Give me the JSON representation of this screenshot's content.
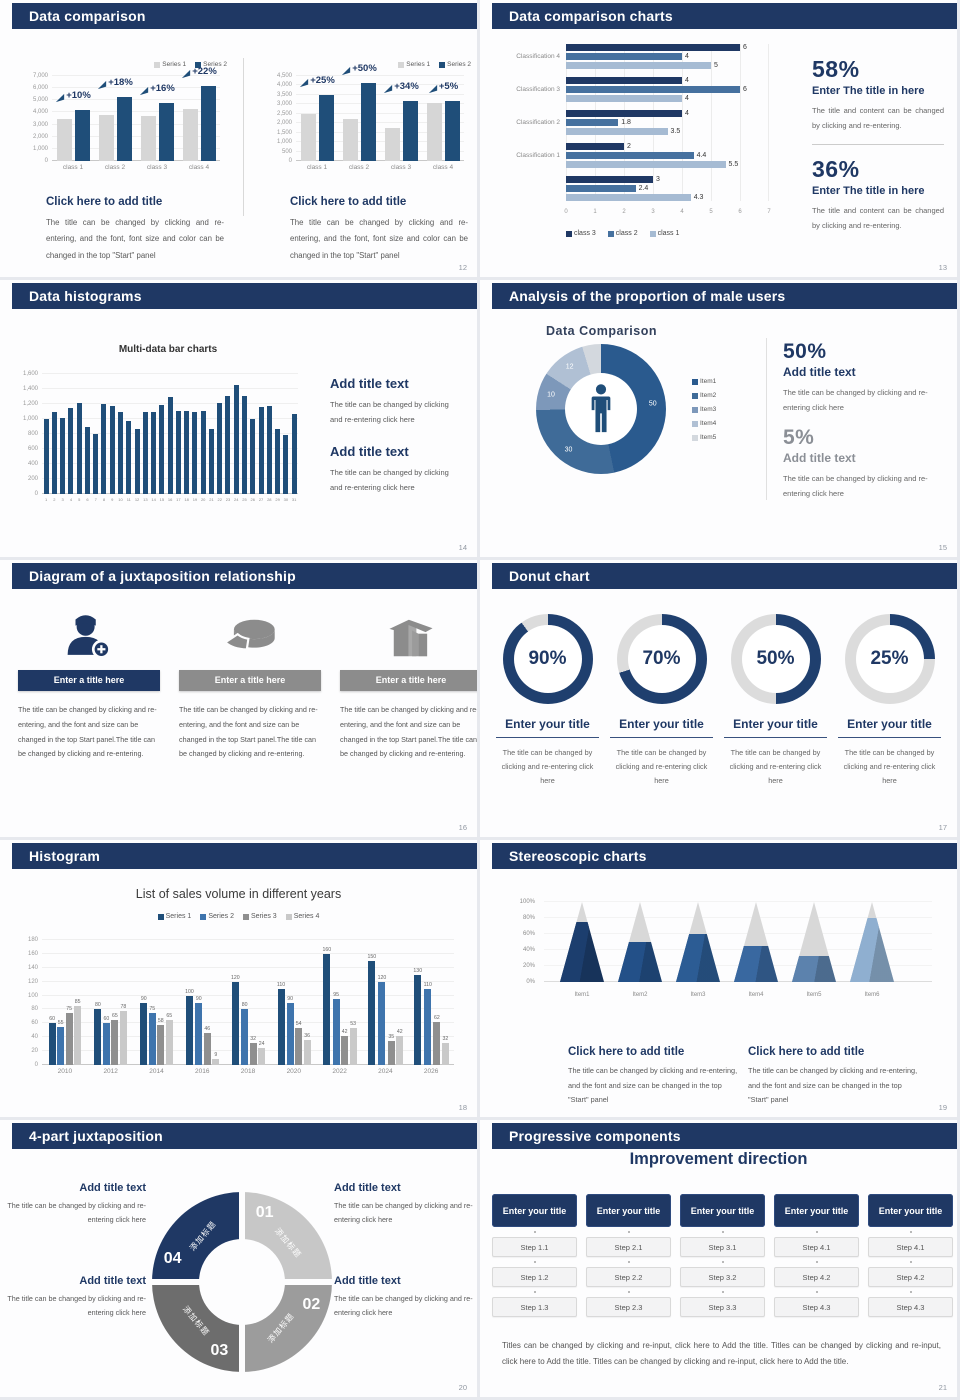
{
  "theme": {
    "accent": "#1f3864",
    "chart_blue": "#1f4e79",
    "gray_bar": "#d6d6d6",
    "body_text": "#595959",
    "background": "#e7e9ee"
  },
  "slides": {
    "s12": {
      "title": "Data comparison",
      "page": "12",
      "heading": "Click here to add title",
      "body_left": "The title can be changed by clicking and re-entering, and the font, font size and color can be changed in the top \"Start\" panel",
      "body_right": "The title can be changed by clicking and re-entering, and the font, font size and color can be changed in the top \"Start\" panel"
    },
    "s13": {
      "title": "Data comparison charts",
      "page": "13",
      "stats": [
        {
          "pct": "58%",
          "heading": "Enter The title in here",
          "body": "The title and content can be changed by clicking and re-entering."
        },
        {
          "pct": "36%",
          "heading": "Enter The title in here",
          "body": "The title and content can be changed by clicking and re-entering."
        }
      ]
    },
    "s14": {
      "title": "Data histograms",
      "page": "14",
      "blocks": [
        {
          "heading": "Add title text",
          "body": "The title can be changed by clicking and re-entering click here"
        },
        {
          "heading": "Add title text",
          "body": "The title can be changed by clicking and re-entering click here"
        }
      ]
    },
    "s15": {
      "title": "Analysis of the proportion of male users",
      "page": "15",
      "stats": [
        {
          "pct": "50%",
          "heading": "Add title text",
          "body": "The title can be changed by clicking and re-entering click here"
        },
        {
          "pct": "5%",
          "heading": "Add title text",
          "body": "The title can be changed by clicking and re-entering click here"
        }
      ]
    },
    "s16": {
      "title": "Diagram of a juxtaposition relationship",
      "page": "16",
      "columns": [
        {
          "icon": "nurse-plus-icon",
          "bar": "Enter a title here",
          "body": "The title can be changed by clicking and re-entering, and the font and size can be changed in the top Start panel.The title can be changed by clicking and re-entering."
        },
        {
          "icon": "pie-3d-icon",
          "bar": "Enter a title here",
          "body": "The title can be changed by clicking and re-entering, and the font and size can be changed in the top Start panel.The title can be changed by clicking and re-entering."
        },
        {
          "icon": "building-icon",
          "bar": "Enter a title here",
          "body": "The title can be changed by clicking and re-entering, and the font and size can be changed in the top Start panel.The title can be changed by clicking and re-entering."
        }
      ]
    },
    "s17": {
      "title": "Donut chart",
      "page": "17",
      "heading": "Enter your title",
      "body": "The title can be changed by clicking and re-entering click here"
    },
    "s18": {
      "title": "Histogram",
      "page": "18"
    },
    "s19": {
      "title": "Stereoscopic charts",
      "page": "19",
      "heading": "Click here to add title",
      "body": "The title can be changed by clicking and re-entering, and the font and size can be changed in the top \"Start\" panel"
    },
    "s20": {
      "title": "4-part juxtaposition",
      "page": "20",
      "heading": "Add title text",
      "body": "The title can be changed by clicking and re-entering click here"
    },
    "s21": {
      "title": "Progressive components",
      "page": "21",
      "heading": "Improvement direction",
      "button": "Enter your title",
      "steps": [
        [
          "Step 1.1",
          "Step 1.2",
          "Step 1.3"
        ],
        [
          "Step 2.1",
          "Step 2.2",
          "Step 2.3"
        ],
        [
          "Step 3.1",
          "Step 3.2",
          "Step 3.3"
        ],
        [
          "Step 4.1",
          "Step 4.2",
          "Step 4.3"
        ],
        [
          "Step 4.1",
          "Step 4.2",
          "Step 4.3"
        ]
      ],
      "footer": "Titles can be changed by clicking and re-input, click here to Add the title. Titles can be changed by clicking and re-input, click here to Add the title. Titles can be changed by clicking and re-input, click here to Add the title."
    }
  },
  "chart_data": {
    "c12l": {
      "type": "bar",
      "categories": [
        "class 1",
        "class 2",
        "class 3",
        "class 4"
      ],
      "series": [
        {
          "name": "Series 1",
          "color": "#d6d6d6",
          "values": [
            3500,
            3800,
            3700,
            4300
          ]
        },
        {
          "name": "Series 2",
          "color": "#1f4e79",
          "values": [
            4200,
            5300,
            4800,
            6200
          ]
        }
      ],
      "annotations": [
        "+10%",
        "+18%",
        "+16%",
        "+22%"
      ],
      "ylim": [
        0,
        7000
      ],
      "ytick": 1000,
      "legend_position": "top-right"
    },
    "c12r": {
      "type": "bar",
      "categories": [
        "class 1",
        "class 2",
        "class 3",
        "class 4"
      ],
      "series": [
        {
          "name": "Series 1",
          "color": "#d6d6d6",
          "values": [
            2500,
            2250,
            1750,
            3050
          ]
        },
        {
          "name": "Series 2",
          "color": "#1f4e79",
          "values": [
            3500,
            4150,
            3200,
            3200
          ]
        }
      ],
      "annotations": [
        "+25%",
        "+50%",
        "+34%",
        "+5%"
      ],
      "ylim": [
        0,
        4500
      ],
      "ytick": 500,
      "legend_position": "top-right"
    },
    "c13": {
      "type": "bar-horizontal",
      "categories": [
        "Classification 4",
        "Classification 3",
        "Classification 2",
        "Classification 1",
        ""
      ],
      "series": [
        {
          "name": "class 3",
          "color": "#1f3864",
          "values": [
            6,
            4,
            4,
            2,
            3
          ]
        },
        {
          "name": "class 2",
          "color": "#46719f",
          "values": [
            4,
            6,
            1.8,
            4.4,
            2.4
          ]
        },
        {
          "name": "class 1",
          "color": "#a6bbd3",
          "values": [
            5,
            4,
            3.5,
            5.5,
            4.3
          ]
        }
      ],
      "xlim": [
        0,
        7
      ],
      "xtick": 1,
      "legend_position": "bottom"
    },
    "c14": {
      "type": "bar",
      "title": "Multi-data bar charts",
      "categories": [
        "1",
        "2",
        "3",
        "4",
        "5",
        "6",
        "7",
        "8",
        "9",
        "10",
        "11",
        "12",
        "13",
        "14",
        "15",
        "16",
        "17",
        "18",
        "19",
        "20",
        "21",
        "22",
        "23",
        "24",
        "25",
        "26",
        "27",
        "28",
        "29",
        "30",
        "31"
      ],
      "values": [
        1000,
        1100,
        1010,
        1150,
        1220,
        900,
        800,
        1200,
        1180,
        1100,
        980,
        870,
        1090,
        1100,
        1190,
        1300,
        1110,
        1110,
        1090,
        1110,
        870,
        1210,
        1310,
        1450,
        1310,
        1000,
        1160,
        1170,
        870,
        790,
        1070
      ],
      "color": "#1f4e79",
      "ylim": [
        0,
        1600
      ],
      "ytick": 200
    },
    "c15": {
      "type": "donut",
      "title": "Data Comparison",
      "segments": [
        {
          "label": "50",
          "value": 50,
          "color": "#2a5a8e"
        },
        {
          "label": "30",
          "value": 30,
          "color": "#3f6b98"
        },
        {
          "label": "10",
          "value": 10,
          "color": "#7d98ba"
        },
        {
          "label": "12",
          "value": 12,
          "color": "#b0c0d4"
        },
        {
          "label": "",
          "value": 5,
          "color": "#d3d8de"
        }
      ],
      "legend": [
        "Item1",
        "Item2",
        "Item3",
        "Item4",
        "Item5"
      ],
      "center_icon": "male-icon"
    },
    "c17": {
      "type": "donut-gauge",
      "values": [
        90,
        70,
        50,
        25
      ],
      "color": "#1f3f6e",
      "track": "#dcdcdc"
    },
    "c18": {
      "type": "bar",
      "title": "List of sales volume in different years",
      "categories": [
        "2010",
        "2012",
        "2014",
        "2016",
        "2018",
        "2020",
        "2022",
        "2024",
        "2026"
      ],
      "series": [
        {
          "name": "Series 1",
          "color": "#1f4e79",
          "values": [
            60,
            80,
            90,
            100,
            120,
            110,
            160,
            150,
            130
          ]
        },
        {
          "name": "Series 2",
          "color": "#3e74ad",
          "values": [
            55,
            60,
            75,
            90,
            80,
            90,
            95,
            120,
            110
          ]
        },
        {
          "name": "Series 3",
          "color": "#8f8f8f",
          "values": [
            75,
            65,
            58,
            46,
            32,
            54,
            42,
            35,
            62
          ]
        },
        {
          "name": "Series 4",
          "color": "#c9c9c9",
          "values": [
            85,
            78,
            65,
            9,
            24,
            36,
            53,
            42,
            32
          ]
        }
      ],
      "ylim": [
        0,
        180
      ],
      "ytick": 20,
      "legend_position": "top"
    },
    "c19": {
      "type": "pyramid",
      "categories": [
        "Item1",
        "Item2",
        "Item3",
        "Item4",
        "Item5",
        "Item6"
      ],
      "values": [
        75,
        50,
        60,
        45,
        32,
        80
      ],
      "colors": [
        "#1c3e6e",
        "#235088",
        "#2c5c94",
        "#3968a0",
        "#5c82ad",
        "#8fafd0"
      ],
      "track": "#d8d8d8",
      "ylim": [
        0,
        100
      ],
      "ytick": 20
    },
    "c20": {
      "type": "ring-4part",
      "numbers": [
        "01",
        "02",
        "03",
        "04"
      ],
      "labels": [
        "添加标题",
        "添加标题",
        "添加标题",
        "添加标题"
      ],
      "colors": [
        "#c7c7c7",
        "#9c9c9c",
        "#6d6d6d",
        "#1f3864"
      ]
    }
  }
}
